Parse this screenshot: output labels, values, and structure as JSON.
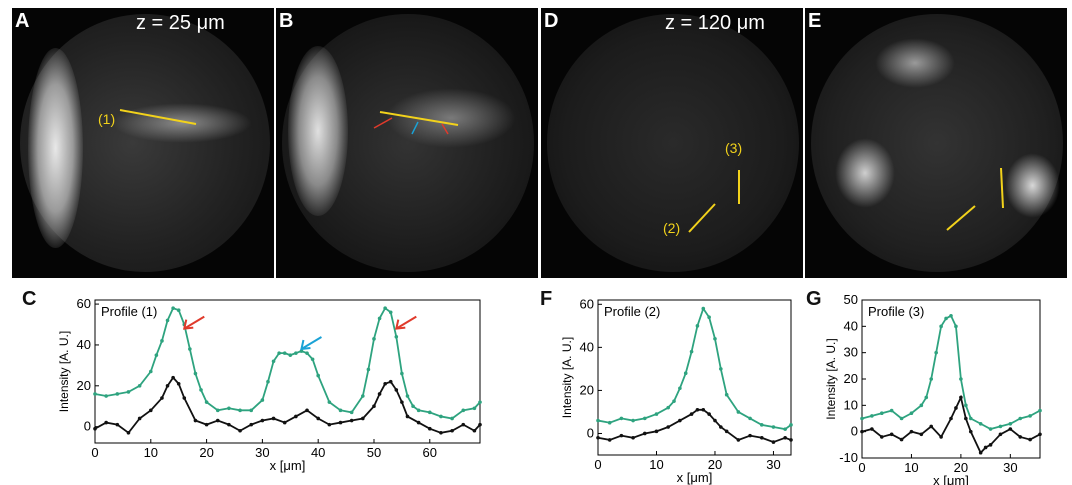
{
  "figure": {
    "panel_labels": {
      "A": "A",
      "B": "B",
      "C": "C",
      "D": "D",
      "E": "E",
      "F": "F",
      "G": "G"
    },
    "depth_labels": {
      "A": "z = 25 μm",
      "D": "z = 120 μm"
    },
    "profile_markers": {
      "p1": "(1)",
      "p2": "(2)",
      "p3": "(3)"
    },
    "colors": {
      "green": "#2ea37f",
      "black": "#111111",
      "red_arrow": "#e03a2b",
      "blue_arrow": "#1aa2d6",
      "yellow_line": "#f2d21b"
    }
  },
  "chart_data": [
    {
      "id": "C",
      "type": "line",
      "title": "Profile (1)",
      "xlabel": "x [μm]",
      "ylabel": "Intensity [A. U.]",
      "xlim": [
        0,
        69
      ],
      "ylim": [
        -8,
        62
      ],
      "xticks": [
        0,
        10,
        20,
        30,
        40,
        50,
        60
      ],
      "yticks": [
        0,
        20,
        40,
        60
      ],
      "series": [
        {
          "color": "#2ea37f",
          "x": [
            0,
            2,
            4,
            6,
            8,
            10,
            11,
            12,
            13,
            14,
            15,
            16,
            17,
            18,
            19,
            20,
            22,
            24,
            26,
            28,
            30,
            31,
            32,
            33,
            34,
            35,
            36,
            37,
            38,
            39,
            40,
            42,
            44,
            46,
            48,
            49,
            50,
            51,
            52,
            53,
            54,
            55,
            56,
            57,
            58,
            60,
            62,
            64,
            66,
            68,
            69
          ],
          "y": [
            16,
            15,
            16,
            17,
            20,
            27,
            35,
            42,
            52,
            58,
            57,
            50,
            38,
            26,
            18,
            12,
            8,
            9,
            8,
            8,
            13,
            22,
            32,
            36,
            36,
            35,
            36,
            37,
            36,
            33,
            25,
            12,
            8,
            7,
            15,
            28,
            43,
            53,
            58,
            56,
            44,
            26,
            15,
            10,
            8,
            7,
            5,
            4,
            8,
            9,
            12
          ]
        },
        {
          "color": "#111111",
          "x": [
            0,
            2,
            4,
            6,
            8,
            10,
            12,
            13,
            14,
            15,
            16,
            18,
            20,
            22,
            24,
            26,
            28,
            30,
            32,
            34,
            36,
            38,
            40,
            42,
            44,
            46,
            48,
            50,
            51,
            52,
            53,
            54,
            55,
            56,
            58,
            60,
            62,
            64,
            66,
            68,
            69
          ],
          "y": [
            -1,
            2,
            1,
            -3,
            4,
            8,
            14,
            20,
            24,
            21,
            14,
            3,
            1,
            3,
            1,
            -2,
            1,
            3,
            4,
            2,
            5,
            8,
            4,
            1,
            2,
            3,
            4,
            10,
            16,
            21,
            22,
            18,
            12,
            5,
            2,
            -1,
            -3,
            -2,
            1,
            -2,
            1
          ]
        }
      ]
    },
    {
      "id": "F",
      "type": "line",
      "title": "Profile (2)",
      "xlabel": "x [μm]",
      "ylabel": "Intensity [A. U.]",
      "xlim": [
        0,
        33
      ],
      "ylim": [
        -10,
        62
      ],
      "xticks": [
        0,
        10,
        20,
        30
      ],
      "yticks": [
        0,
        20,
        40,
        60
      ],
      "series": [
        {
          "color": "#2ea37f",
          "x": [
            0,
            2,
            4,
            6,
            8,
            10,
            12,
            13,
            14,
            15,
            16,
            17,
            18,
            19,
            20,
            21,
            22,
            24,
            26,
            28,
            30,
            32,
            33
          ],
          "y": [
            6,
            5,
            7,
            6,
            7,
            9,
            12,
            15,
            21,
            28,
            38,
            50,
            58,
            54,
            44,
            30,
            18,
            10,
            7,
            4,
            3,
            2,
            4
          ]
        },
        {
          "color": "#111111",
          "x": [
            0,
            2,
            4,
            6,
            8,
            10,
            12,
            14,
            16,
            17,
            18,
            19,
            20,
            21,
            22,
            24,
            26,
            28,
            30,
            32,
            33
          ],
          "y": [
            -2,
            -3,
            -1,
            -2,
            0,
            1,
            3,
            6,
            9,
            11,
            11,
            9,
            6,
            3,
            1,
            -3,
            -1,
            -2,
            -4,
            -2,
            -3
          ]
        }
      ]
    },
    {
      "id": "G",
      "type": "line",
      "title": "Profile (3)",
      "xlabel": "x [μm]",
      "ylabel": "Intensity [A. U.]",
      "xlim": [
        0,
        36
      ],
      "ylim": [
        -10,
        50
      ],
      "xticks": [
        0,
        10,
        20,
        30
      ],
      "yticks": [
        -10,
        0,
        10,
        20,
        30,
        40,
        50
      ],
      "series": [
        {
          "color": "#2ea37f",
          "x": [
            0,
            2,
            4,
            6,
            8,
            10,
            12,
            13,
            14,
            15,
            16,
            17,
            18,
            19,
            20,
            21,
            22,
            24,
            26,
            28,
            30,
            32,
            34,
            36
          ],
          "y": [
            5,
            6,
            7,
            8,
            5,
            7,
            10,
            13,
            20,
            30,
            40,
            43,
            44,
            40,
            20,
            10,
            5,
            3,
            1,
            2,
            3,
            5,
            6,
            8
          ]
        },
        {
          "color": "#111111",
          "x": [
            0,
            2,
            4,
            6,
            8,
            10,
            12,
            14,
            16,
            18,
            19,
            20,
            21,
            22,
            24,
            25,
            26,
            28,
            30,
            32,
            34,
            36
          ],
          "y": [
            0,
            1,
            -2,
            -1,
            -3,
            0,
            -1,
            2,
            -2,
            5,
            9,
            13,
            5,
            0,
            -8,
            -6,
            -5,
            -1,
            1,
            -2,
            -3,
            -1
          ]
        }
      ]
    }
  ]
}
